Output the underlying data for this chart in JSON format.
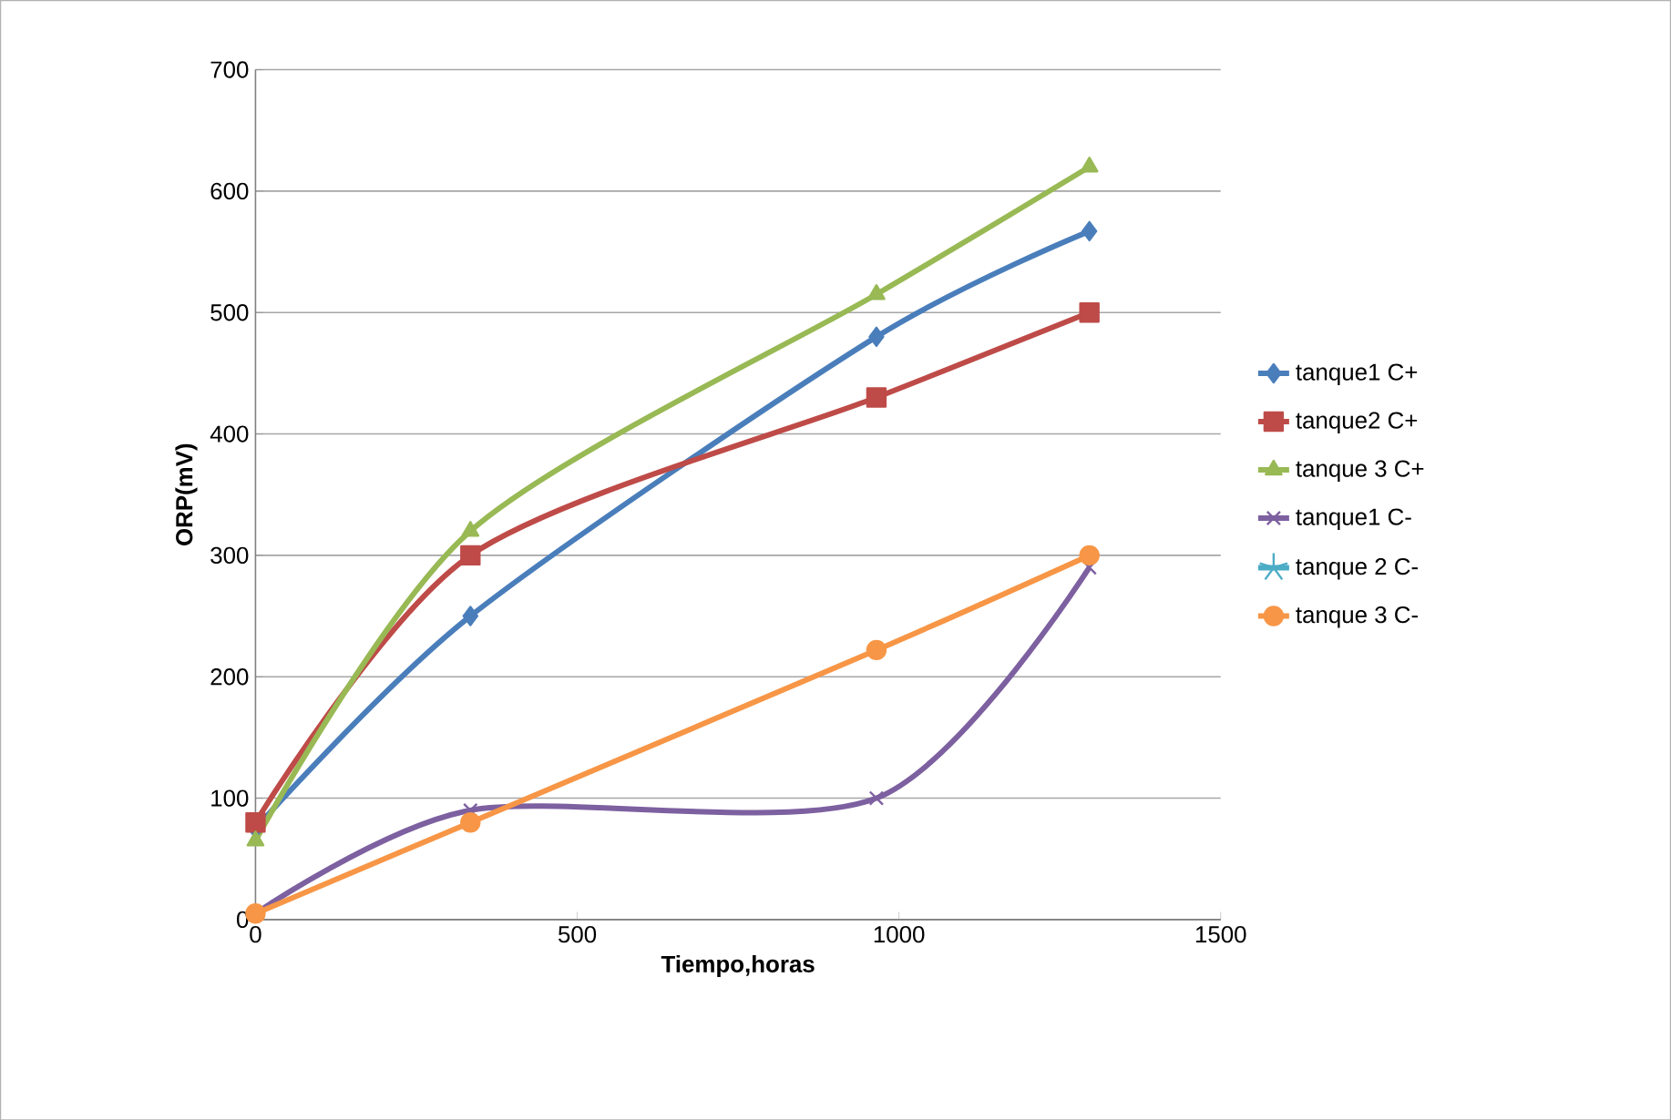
{
  "chart_data": {
    "type": "line",
    "xlabel": "Tiempo,horas",
    "ylabel": "ORP(mV)",
    "x": [
      0,
      334,
      965,
      1296
    ],
    "xlim": [
      0,
      1500
    ],
    "xticks": [
      0,
      500,
      1000,
      1500
    ],
    "ylim": [
      0,
      700
    ],
    "yticks": [
      0,
      100,
      200,
      300,
      400,
      500,
      600,
      700
    ],
    "grid": "y",
    "legend": "right",
    "series": [
      {
        "name": "tanque1 C+",
        "color": "#4a7ebb",
        "marker": "diamond",
        "values": [
          75,
          250,
          480,
          567
        ]
      },
      {
        "name": "tanque2 C+",
        "color": "#be4b48",
        "marker": "square",
        "values": [
          80,
          300,
          430,
          500
        ]
      },
      {
        "name": "tanque 3 C+",
        "color": "#98b954",
        "marker": "triangle",
        "values": [
          65,
          320,
          515,
          620
        ]
      },
      {
        "name": "tanque1 C-",
        "color": "#7d60a0",
        "marker": "cross",
        "values": [
          5,
          90,
          100,
          290
        ]
      },
      {
        "name": "tanque 2 C-",
        "color": "#4bacc6",
        "marker": "star",
        "values": [
          null,
          null,
          null,
          null
        ]
      },
      {
        "name": "tanque 3 C-",
        "color": "#f79646",
        "marker": "circle",
        "values": [
          5,
          80,
          222,
          300
        ]
      }
    ]
  }
}
